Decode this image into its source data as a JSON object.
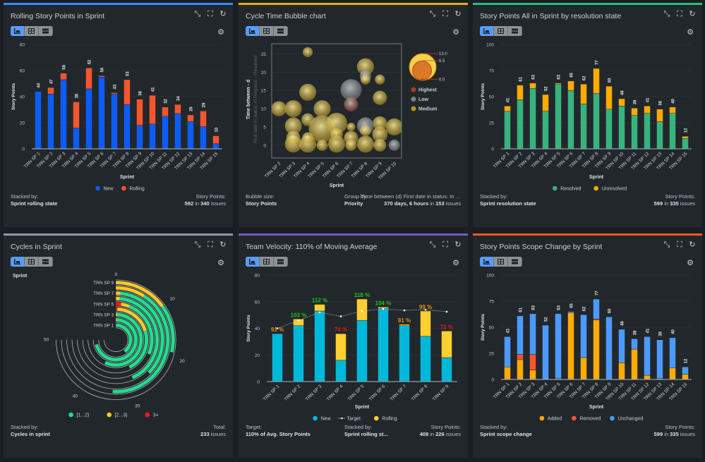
{
  "colors": {
    "panel_bg": "#22272b",
    "page_bg": "#1a1d21",
    "grid": "#2c333a",
    "text": "#b6c2cf"
  },
  "toolbar": {
    "buttons": [
      "chart-view",
      "table-view",
      "list-view"
    ],
    "gear": "settings-icon"
  },
  "header_icons": [
    "collapse-icon",
    "fullscreen-icon",
    "refresh-icon"
  ],
  "panels": [
    {
      "title": "Rolling Story Points in Sprint",
      "accent": "#388bff",
      "footer": [
        {
          "align": "left",
          "label": "Stacked by:",
          "parts": [
            {
              "t": "Sprint rolling state",
              "b": true
            }
          ]
        },
        {
          "align": "right",
          "label": "Story Points:",
          "parts": [
            {
              "t": "592",
              "b": true
            },
            {
              "t": " in "
            },
            {
              "t": "340",
              "b": true
            },
            {
              "t": " issues"
            }
          ]
        }
      ]
    },
    {
      "title": "Cycle Time Bubble chart",
      "accent": "#e2b203",
      "footer": [
        {
          "align": "left",
          "label": "Bubble size:",
          "parts": [
            {
              "t": "Story Points",
              "b": true
            }
          ]
        },
        {
          "align": "mid",
          "label": "Group by:",
          "parts": [
            {
              "t": "Priority",
              "b": true
            }
          ]
        },
        {
          "align": "right",
          "label": "Time between (d) First date in status: In …",
          "parts": [
            {
              "t": "370 days, 6 hours",
              "b": true
            },
            {
              "t": " in "
            },
            {
              "t": "153",
              "b": true
            },
            {
              "t": " issues"
            }
          ]
        }
      ]
    },
    {
      "title": "Story Points All in Sprint by resolution state",
      "accent": "#2abb7f",
      "footer": [
        {
          "align": "left",
          "label": "Stacked by:",
          "parts": [
            {
              "t": "Sprint resolution state",
              "b": true
            }
          ]
        },
        {
          "align": "right",
          "label": "Story Points:",
          "parts": [
            {
              "t": "599",
              "b": true
            },
            {
              "t": " in "
            },
            {
              "t": "335",
              "b": true
            },
            {
              "t": " issues"
            }
          ]
        }
      ]
    },
    {
      "title": "Cycles in Sprint",
      "accent": "#8c9bab",
      "footer": [
        {
          "align": "left",
          "label": "Stacked by:",
          "parts": [
            {
              "t": "Cycles in sprint",
              "b": true
            }
          ]
        },
        {
          "align": "right",
          "label": "Total:",
          "parts": [
            {
              "t": "233",
              "b": true
            },
            {
              "t": " issues"
            }
          ]
        }
      ]
    },
    {
      "title": "Team Velocity: 110% of Moving Average",
      "accent": "#6e5dc6",
      "footer": [
        {
          "align": "left",
          "label": "Target:",
          "parts": [
            {
              "t": "110% of Avg. Story Points",
              "b": true
            }
          ]
        },
        {
          "align": "mid",
          "label": "Stacked by:",
          "parts": [
            {
              "t": "Sprint rolling st...",
              "b": true
            }
          ]
        },
        {
          "align": "right",
          "label": "Story Points:",
          "parts": [
            {
              "t": "408",
              "b": true
            },
            {
              "t": " in "
            },
            {
              "t": "226",
              "b": true
            },
            {
              "t": " issues"
            }
          ]
        }
      ]
    },
    {
      "title": "Story Points Scope Change by Sprint",
      "accent": "#f15b2b",
      "footer": [
        {
          "align": "left",
          "label": "Stacked by:",
          "parts": [
            {
              "t": "Sprint scope change",
              "b": true
            }
          ]
        },
        {
          "align": "right",
          "label": "Story Points:",
          "parts": [
            {
              "t": "599",
              "b": true
            },
            {
              "t": " in "
            },
            {
              "t": "335",
              "b": true
            },
            {
              "t": " issues"
            }
          ]
        }
      ]
    }
  ],
  "chart_data": [
    {
      "type": "bar",
      "stacked": true,
      "xlabel": "Sprint",
      "ylabel": "Story Points",
      "ylim": [
        0,
        80
      ],
      "yticks": [
        0,
        20,
        40,
        60,
        80
      ],
      "grid": true,
      "legend": "bottom",
      "categories": [
        "TRN SP 1",
        "TRN SP 2",
        "TRN SP 3",
        "TRN SP 4",
        "TRN SP 5",
        "TRN SP 6",
        "TRN SP 7",
        "TRN SP 8",
        "TRN SP 9",
        "TRN SP 10",
        "TRN SP 11",
        "TRN SP 12",
        "TRN SP 13",
        "TRN SP 14",
        "TRN SP 15"
      ],
      "totals": [
        44,
        47,
        58,
        36,
        62,
        56,
        43,
        53,
        38,
        41,
        32,
        34,
        26,
        29,
        10
      ],
      "series": [
        {
          "name": "New",
          "color": "#0c5cf5",
          "values": [
            44,
            42,
            53,
            16,
            46,
            55,
            42,
            34,
            18,
            19,
            25,
            27,
            21,
            17,
            4
          ]
        },
        {
          "name": "Rolling",
          "color": "#f6552e",
          "values": [
            0,
            5,
            5,
            20,
            16,
            1,
            1,
            19,
            20,
            22,
            7,
            7,
            5,
            12,
            6
          ]
        }
      ]
    },
    {
      "type": "scatter",
      "subtype": "bubble",
      "xlabel": "Sprint",
      "ylabel": "Time between - d",
      "ylabel_sub": "First date in status: In Progress – Resolved",
      "ylim": [
        -3.5,
        27.8
      ],
      "yticks": [
        0,
        5,
        10,
        15,
        20,
        25
      ],
      "grid": true,
      "legend": "right",
      "categories": [
        "TRN SP 2",
        "TRN SP 3",
        "TRN SP 4",
        "TRN SP 5",
        "TRN SP 6",
        "TRN SP 7",
        "TRN SP 8",
        "TRN SP 9",
        "TRN SP 10"
      ],
      "size_legend": [
        "13.0",
        "6.5",
        "0.0"
      ],
      "groups": [
        {
          "name": "Highest",
          "color": "#a0402a"
        },
        {
          "name": "Low",
          "color": "#7a7f85"
        },
        {
          "name": "Medium",
          "color": "#b8951f"
        }
      ],
      "points": [
        {
          "sprint": "TRN SP 2",
          "y": 10,
          "size": 4.1,
          "group": "Medium"
        },
        {
          "sprint": "TRN SP 3",
          "y": 10,
          "size": 5.2,
          "group": "Medium"
        },
        {
          "sprint": "TRN SP 3",
          "y": 5.3,
          "size": 5.2,
          "group": "Medium"
        },
        {
          "sprint": "TRN SP 3",
          "y": 2,
          "size": 3.6,
          "group": "Medium"
        },
        {
          "sprint": "TRN SP 3",
          "y": 0.3,
          "size": 5.2,
          "group": "Medium"
        },
        {
          "sprint": "TRN SP 4",
          "y": 25.5,
          "size": 1.8,
          "group": "Medium"
        },
        {
          "sprint": "TRN SP 4",
          "y": 14.5,
          "size": 5.2,
          "group": "Medium"
        },
        {
          "sprint": "TRN SP 4",
          "y": 7,
          "size": 2.9,
          "group": "Medium"
        },
        {
          "sprint": "TRN SP 4",
          "y": 2,
          "size": 2.3,
          "group": "Medium"
        },
        {
          "sprint": "TRN SP 4",
          "y": 0.3,
          "size": 5.2,
          "group": "Medium"
        },
        {
          "sprint": "TRN SP 5",
          "y": 10,
          "size": 5.2,
          "group": "Medium"
        },
        {
          "sprint": "TRN SP 5",
          "y": 4.5,
          "size": 13,
          "group": "Medium"
        },
        {
          "sprint": "TRN SP 5",
          "y": 0,
          "size": 2.3,
          "group": "Medium"
        },
        {
          "sprint": "TRN SP 6",
          "y": 6,
          "size": 8.1,
          "group": "Medium"
        },
        {
          "sprint": "TRN SP 6",
          "y": 3,
          "size": 2.9,
          "group": "Medium"
        },
        {
          "sprint": "TRN SP 6",
          "y": 0.3,
          "size": 5.2,
          "group": "Medium"
        },
        {
          "sprint": "TRN SP 7",
          "y": 15.2,
          "size": 8.1,
          "group": "Low"
        },
        {
          "sprint": "TRN SP 7",
          "y": 11.2,
          "size": 3.6,
          "group": "Highest"
        },
        {
          "sprint": "TRN SP 7",
          "y": 5,
          "size": 1.3,
          "group": "Medium"
        },
        {
          "sprint": "TRN SP 7",
          "y": 2,
          "size": 3.6,
          "group": "Medium"
        },
        {
          "sprint": "TRN SP 7",
          "y": 0,
          "size": 2.3,
          "group": "Medium"
        },
        {
          "sprint": "TRN SP 8",
          "y": 21.5,
          "size": 5.2,
          "group": "Medium"
        },
        {
          "sprint": "TRN SP 8",
          "y": 19,
          "size": 2.3,
          "group": "Low"
        },
        {
          "sprint": "TRN SP 8",
          "y": 18,
          "size": 1.8,
          "group": "Medium"
        },
        {
          "sprint": "TRN SP 8",
          "y": 5.3,
          "size": 5.2,
          "group": "Low"
        },
        {
          "sprint": "TRN SP 8",
          "y": 4,
          "size": 2.3,
          "group": "Medium"
        },
        {
          "sprint": "TRN SP 8",
          "y": 0.3,
          "size": 5.2,
          "group": "Medium"
        },
        {
          "sprint": "TRN SP 9",
          "y": 18,
          "size": 1.8,
          "group": "Medium"
        },
        {
          "sprint": "TRN SP 9",
          "y": 13,
          "size": 3.6,
          "group": "Medium"
        },
        {
          "sprint": "TRN SP 9",
          "y": 6,
          "size": 3.6,
          "group": "Medium"
        },
        {
          "sprint": "TRN SP 9",
          "y": 3,
          "size": 4.3,
          "group": "Medium"
        },
        {
          "sprint": "TRN SP 9",
          "y": 0,
          "size": 2.9,
          "group": "Medium"
        },
        {
          "sprint": "TRN SP 10",
          "y": 5,
          "size": 5.2,
          "group": "Medium"
        },
        {
          "sprint": "TRN SP 10",
          "y": 0,
          "size": 2.3,
          "group": "Low"
        }
      ]
    },
    {
      "type": "bar",
      "stacked": true,
      "xlabel": "Sprint",
      "ylabel": "Story Points",
      "ylim": [
        0,
        100
      ],
      "yticks": [
        0,
        25,
        50,
        75,
        100
      ],
      "grid": true,
      "legend": "bottom",
      "categories": [
        "TRN SP 1",
        "TRN SP 2",
        "TRN SP 3",
        "TRN SP 4",
        "TRN SP 5",
        "TRN SP 6",
        "TRN SP 7",
        "TRN SP 8",
        "TRN SP 9",
        "TRN SP 10",
        "TRN SP 11",
        "TRN SP 12",
        "TRN SP 13",
        "TRN SP 14",
        "TRN SP 15"
      ],
      "totals": [
        41,
        61,
        63,
        52,
        63,
        65,
        62,
        77,
        60,
        48,
        39,
        41,
        38,
        40,
        12
      ],
      "series": [
        {
          "name": "Resolved",
          "color": "#36b37e",
          "values": [
            36,
            47,
            58,
            36,
            62,
            56,
            43,
            53,
            38,
            41,
            32,
            34,
            26,
            34,
            10
          ]
        },
        {
          "name": "Unresolved",
          "color": "#ffab00",
          "values": [
            5,
            14,
            5,
            16,
            1,
            9,
            19,
            24,
            22,
            7,
            7,
            7,
            12,
            6,
            2
          ]
        }
      ]
    },
    {
      "type": "bar",
      "subtype": "radial-stacked",
      "title_label": "Sprint",
      "xlim": [
        0,
        50
      ],
      "ticks": [
        0,
        10,
        20,
        30,
        40,
        50
      ],
      "legend": "bottom",
      "categories": [
        "TRN SP 1",
        "TRN SP 2",
        "TRN SP 3",
        "TRN SP 4",
        "TRN SP 5",
        "TRN SP 6",
        "TRN SP 7",
        "TRN SP 8",
        "TRN SP 9"
      ],
      "shown_category_labels": [
        "TRN SP 1",
        "TRN SP 3",
        "TRN SP 5",
        "TRN SP 7",
        "TRN SP 9"
      ],
      "series": [
        {
          "name": "3+",
          "color": "#ff1a1a",
          "values": [
            0,
            0,
            0,
            0.5,
            1.5,
            0,
            0,
            0,
            0
          ]
        },
        {
          "name": "[2...3)",
          "color": "#ffc928",
          "values": [
            0,
            0.5,
            0.5,
            13,
            2.5,
            1,
            1,
            6,
            10
          ]
        },
        {
          "name": "[1...2)",
          "color": "#1fdf8f",
          "values": [
            26.5,
            47,
            37.5,
            15,
            17,
            28,
            24,
            28,
            9
          ]
        }
      ],
      "legend_order": [
        "[1...2)",
        "[2...3)",
        "3+"
      ]
    },
    {
      "type": "bar",
      "stacked": true,
      "xlabel": "Sprint",
      "ylabel": "Story Points",
      "ylim": [
        0,
        80
      ],
      "yticks": [
        0,
        20,
        40,
        60,
        80
      ],
      "grid": true,
      "legend": "bottom",
      "categories": [
        "TRN SP 1",
        "TRN SP 2",
        "TRN SP 3",
        "TRN SP 4",
        "TRN SP 5",
        "TRN SP 6",
        "TRN SP 7",
        "TRN SP 8",
        "TRN SP 9"
      ],
      "series": [
        {
          "name": "New",
          "color": "#00b8d9",
          "values": [
            36,
            42,
            53,
            16,
            46,
            55,
            42,
            34,
            18
          ]
        },
        {
          "name": "Rolling",
          "color": "#fdd02f",
          "values": [
            0,
            5,
            5,
            20,
            16,
            1,
            1,
            19,
            20
          ]
        }
      ],
      "target": {
        "name": "Target",
        "values": [
          40,
          46,
          52,
          49,
          53,
          54.5,
          53.5,
          54,
          52.5
        ]
      },
      "percent_labels": [
        "91 %",
        "103 %",
        "112 %",
        "74 %",
        "118 %",
        "104 %",
        "81 %",
        "99 %",
        "72 %"
      ],
      "percent_colors": [
        "#e8900c",
        "#1cc41c",
        "#1cc41c",
        "#e01d1d",
        "#1cc41c",
        "#1cc41c",
        "#e8900c",
        "#e8900c",
        "#e01d1d"
      ],
      "legend_order": [
        "New",
        "Target",
        "Rolling"
      ]
    },
    {
      "type": "bar",
      "stacked": true,
      "xlabel": "Sprint",
      "ylabel": "Story Points",
      "ylim": [
        0,
        100
      ],
      "yticks": [
        0,
        25,
        50,
        75,
        100
      ],
      "grid": true,
      "legend": "bottom",
      "categories": [
        "TRN SP 1",
        "TRN SP 2",
        "TRN SP 3",
        "TRN SP 4",
        "TRN SP 5",
        "TRN SP 6",
        "TRN SP 7",
        "TRN SP 8",
        "TRN SP 9",
        "TRN SP 10",
        "TRN SP 11",
        "TRN SP 12",
        "TRN SP 13",
        "TRN SP 14",
        "TRN SP 15"
      ],
      "totals": [
        41,
        61,
        63,
        52,
        63,
        65,
        62,
        77,
        60,
        48,
        39,
        41,
        38,
        40,
        12
      ],
      "series": [
        {
          "name": "Added",
          "color": "#ffab00",
          "values": [
            12,
            19,
            9,
            0,
            1,
            64,
            21,
            57,
            0,
            16,
            29,
            4,
            1,
            11,
            5
          ]
        },
        {
          "name": "Removed",
          "color": "#f6552e",
          "values": [
            0,
            5,
            15,
            0,
            0,
            0,
            0,
            1,
            0,
            0,
            0,
            0,
            0,
            0,
            0
          ]
        },
        {
          "name": "Unchanged",
          "color": "#4c9aff",
          "values": [
            29,
            37,
            39,
            52,
            62,
            1,
            41,
            19,
            60,
            32,
            10,
            37,
            37,
            29,
            7
          ]
        }
      ]
    }
  ]
}
